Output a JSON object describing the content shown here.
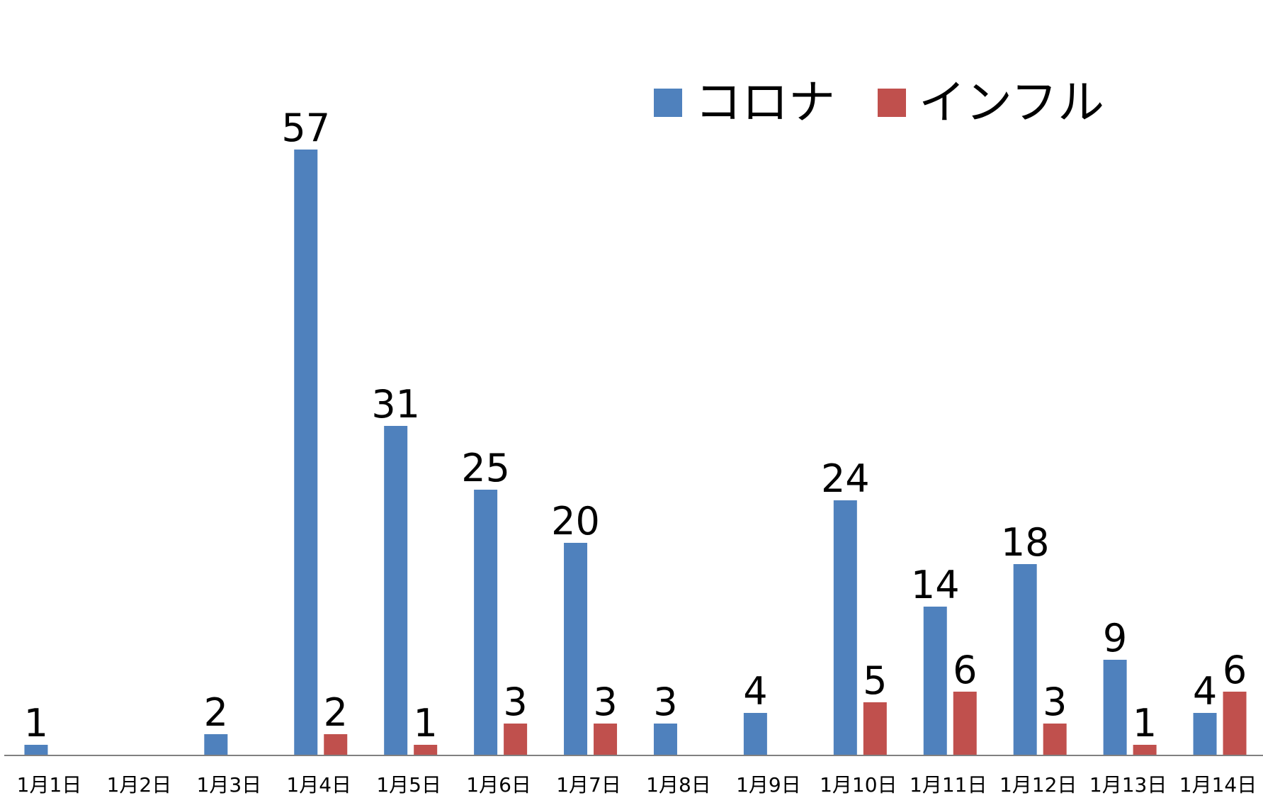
{
  "chart_data": {
    "type": "bar",
    "categories": [
      "1月1日",
      "1月2日",
      "1月3日",
      "1月4日",
      "1月5日",
      "1月6日",
      "1月7日",
      "1月8日",
      "1月9日",
      "1月10日",
      "1月11日",
      "1月12日",
      "1月13日",
      "1月14日"
    ],
    "series": [
      {
        "name": "コロナ",
        "color": "#4f81bd",
        "values": [
          1,
          null,
          2,
          57,
          31,
          25,
          20,
          3,
          4,
          24,
          14,
          18,
          9,
          4
        ]
      },
      {
        "name": "インフル",
        "color": "#c0504d",
        "values": [
          null,
          null,
          null,
          2,
          1,
          3,
          3,
          null,
          null,
          5,
          6,
          3,
          1,
          6
        ]
      }
    ],
    "ylim": [
      0,
      60
    ],
    "grid": false,
    "legend_position": "top-right",
    "data_labels": true
  }
}
